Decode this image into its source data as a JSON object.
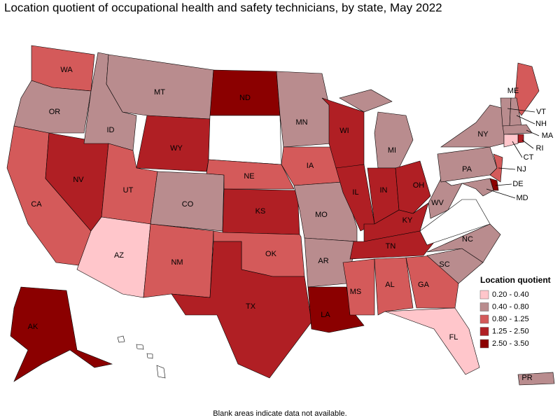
{
  "title": "Location quotient of occupational health and safety technicians, by state, May 2022",
  "legend": {
    "title": "Location quotient",
    "items": [
      {
        "label": "0.20 - 0.40",
        "color": "#ffc6cb"
      },
      {
        "label": "0.40 - 0.80",
        "color": "#b98c8e"
      },
      {
        "label": "0.80 - 1.25",
        "color": "#d45a5a"
      },
      {
        "label": "1.25 - 2.50",
        "color": "#b01f24"
      },
      {
        "label": "2.50 - 3.50",
        "color": "#8b0000"
      }
    ]
  },
  "states": [
    {
      "label": "WA",
      "color": "#d45a5a"
    },
    {
      "label": "OR",
      "color": "#b98c8e"
    },
    {
      "label": "CA",
      "color": "#d45a5a"
    },
    {
      "label": "NV",
      "color": "#b01f24"
    },
    {
      "label": "ID",
      "color": "#b98c8e"
    },
    {
      "label": "MT",
      "color": "#b98c8e"
    },
    {
      "label": "WY",
      "color": "#b01f24"
    },
    {
      "label": "UT",
      "color": "#d45a5a"
    },
    {
      "label": "AZ",
      "color": "#ffc6cb"
    },
    {
      "label": "CO",
      "color": "#b98c8e"
    },
    {
      "label": "NM",
      "color": "#d45a5a"
    },
    {
      "label": "ND",
      "color": "#8b0000"
    },
    {
      "color": "#ffffff"
    },
    {
      "label": "NE",
      "color": "#d45a5a"
    },
    {
      "label": "KS",
      "color": "#b01f24"
    },
    {
      "label": "OK",
      "color": "#d45a5a"
    },
    {
      "label": "TX",
      "color": "#b01f24"
    },
    {
      "label": "MN",
      "color": "#b98c8e"
    },
    {
      "label": "IA",
      "color": "#d45a5a"
    },
    {
      "label": "MO",
      "color": "#b98c8e"
    },
    {
      "label": "AR",
      "color": "#b98c8e"
    },
    {
      "label": "LA",
      "color": "#8b0000"
    },
    {
      "label": "WI",
      "color": "#b01f24"
    },
    {
      "label": "IL",
      "color": "#b01f24"
    },
    {
      "label": "MI",
      "color": "#b98c8e"
    },
    {
      "label": "IN",
      "color": "#b01f24"
    },
    {
      "label": "OH",
      "color": "#b01f24"
    },
    {
      "label": "KY",
      "color": "#b01f24"
    },
    {
      "label": "TN",
      "color": "#b01f24"
    },
    {
      "label": "MS",
      "color": "#d45a5a"
    },
    {
      "label": "AL",
      "color": "#d45a5a"
    },
    {
      "label": "GA",
      "color": "#d45a5a"
    },
    {
      "label": "FL",
      "color": "#ffc6cb"
    },
    {
      "label": "SC",
      "color": "#b98c8e"
    },
    {
      "label": "NC",
      "color": "#b98c8e"
    },
    {
      "color": "#ffffff"
    },
    {
      "label": "WV",
      "color": "#b98c8e"
    },
    {
      "label": "PA",
      "color": "#b98c8e"
    },
    {
      "label": "NY",
      "color": "#b98c8e"
    },
    {
      "label": "ME",
      "color": "#d45a5a"
    },
    {
      "label": "VT",
      "color": "#b98c8e"
    },
    {
      "label": "NH",
      "color": "#b98c8e"
    },
    {
      "label": "MA",
      "color": "#b98c8e"
    },
    {
      "label": "RI",
      "color": "#b01f24"
    },
    {
      "label": "CT",
      "color": "#ffc6cb"
    },
    {
      "label": "NJ",
      "color": "#d45a5a"
    },
    {
      "label": "DE",
      "color": "#8b0000"
    },
    {
      "label": "MD",
      "color": "#b98c8e"
    },
    {
      "label": "AK",
      "color": "#8b0000"
    },
    {
      "color": "#ffffff"
    },
    {
      "label": "PR",
      "color": "#b98c8e"
    }
  ],
  "footnote": "Blank areas indicate data not available."
}
